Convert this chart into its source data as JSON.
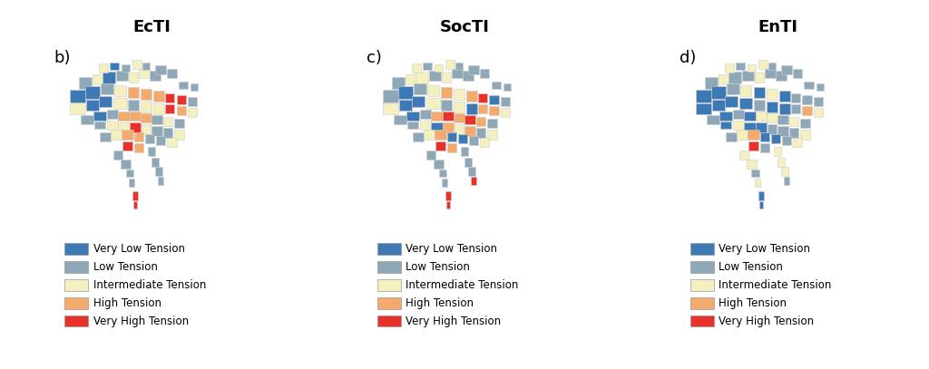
{
  "titles": [
    "EcTI",
    "SocTI",
    "EnTI"
  ],
  "panel_labels": [
    "b)",
    "c)",
    "d)"
  ],
  "legend_labels": [
    "Very Low Tension",
    "Low Tension",
    "Intermediate Tension",
    "High Tension",
    "Very High Tension"
  ],
  "legend_colors": [
    "#3d7ab5",
    "#8fa8b8",
    "#f5f0c0",
    "#f4a96d",
    "#e8312a"
  ],
  "background_color": "#ffffff",
  "title_fontsize": 13,
  "legend_fontsize": 8.5,
  "panel_label_fontsize": 13
}
